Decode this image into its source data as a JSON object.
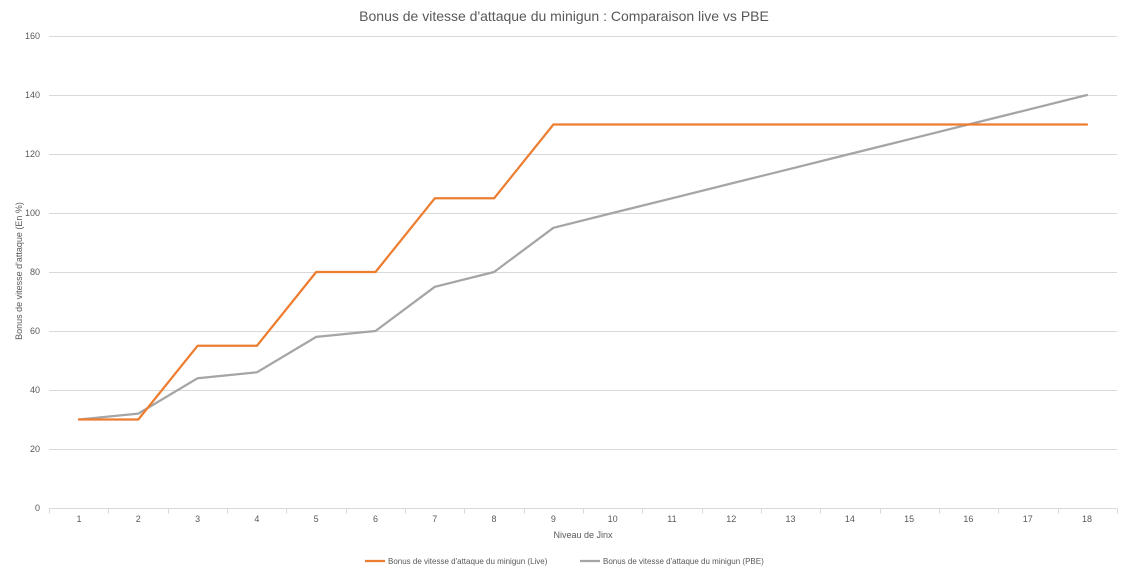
{
  "chart_data": {
    "type": "line",
    "title": "Bonus de vitesse d'attaque du minigun : Comparaison live vs PBE",
    "xlabel": "Niveau de Jinx",
    "ylabel": "Bonus de vitesse d'attaque (En %)",
    "x": [
      "1",
      "2",
      "3",
      "4",
      "5",
      "6",
      "7",
      "8",
      "9",
      "10",
      "11",
      "12",
      "13",
      "14",
      "15",
      "16",
      "17",
      "18"
    ],
    "ylim": [
      0,
      160
    ],
    "yticks": [
      "0",
      "20",
      "40",
      "60",
      "80",
      "100",
      "120",
      "140",
      "160"
    ],
    "grid": true,
    "legend_position": "bottom",
    "series": [
      {
        "name": "Bonus de vitesse d'attaque du minigun (Live)",
        "color": "#ED7D31",
        "values": [
          30,
          30,
          55,
          55,
          80,
          80,
          105,
          105,
          130,
          130,
          130,
          130,
          130,
          130,
          130,
          130,
          130,
          130
        ]
      },
      {
        "name": "Bonus de vitesse d'attaque du minigun (PBE)",
        "color": "#A5A5A5",
        "values": [
          30,
          32,
          44,
          46,
          58,
          60,
          75,
          80,
          95,
          100,
          105,
          110,
          115,
          120,
          125,
          130,
          135,
          140
        ]
      }
    ]
  }
}
